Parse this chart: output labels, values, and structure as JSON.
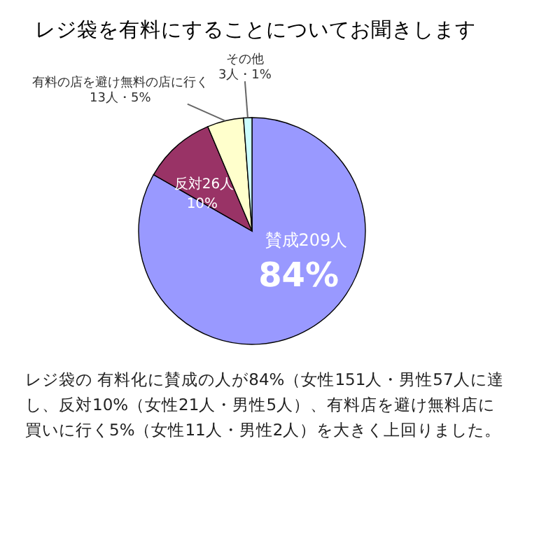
{
  "chart_data": {
    "type": "pie",
    "title": "レジ袋を有料にすることについてお聞きします",
    "categories": [
      "賛成",
      "反対",
      "有料の店を避け無料の店に行く",
      "その他"
    ],
    "values": [
      209,
      26,
      13,
      3
    ],
    "colors": [
      "#9999ff",
      "#993366",
      "#ffffcc",
      "#ccffff"
    ],
    "value_labels": [
      "209人\n84%",
      "26人\n10%",
      "13人・5%",
      "3人・1%"
    ],
    "annotations": [
      "レジ袋の 有料化に賛成の人が84%（女性151人・男性57人に達し、反対10%（女性21人・男性5人）、有料店を避け無料店に買いに行く5%（女性11人・男性2人）を大きく上回りました。"
    ]
  }
}
